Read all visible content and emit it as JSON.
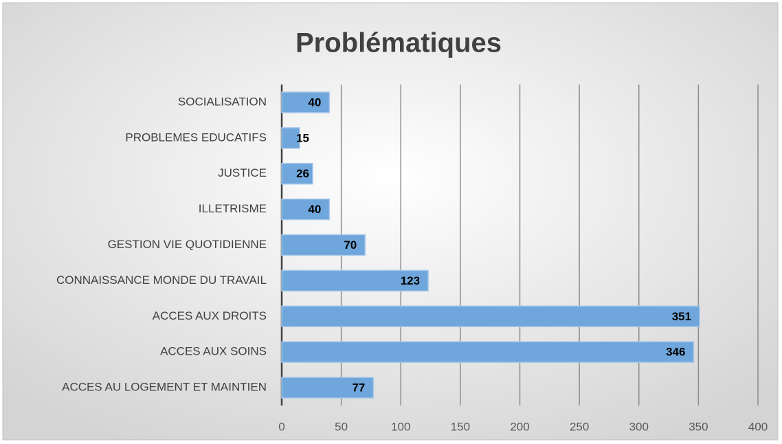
{
  "chart_data": {
    "type": "hbar",
    "title": "Problématiques",
    "categories": [
      "SOCIALISATION",
      "PROBLEMES EDUCATIFS",
      "JUSTICE",
      "ILLETRISME",
      "GESTION VIE QUOTIDIENNE",
      "CONNAISSANCE MONDE DU TRAVAIL",
      "ACCES AUX DROITS",
      "ACCES AUX SOINS",
      "ACCES AU LOGEMENT ET MAINTIEN"
    ],
    "values": [
      40,
      15,
      26,
      40,
      70,
      123,
      351,
      346,
      77
    ],
    "color": "#6fa6db",
    "xlim": [
      0,
      400
    ],
    "xticks": [
      0,
      50,
      100,
      150,
      200,
      250,
      300,
      350,
      400
    ],
    "grid": true
  }
}
